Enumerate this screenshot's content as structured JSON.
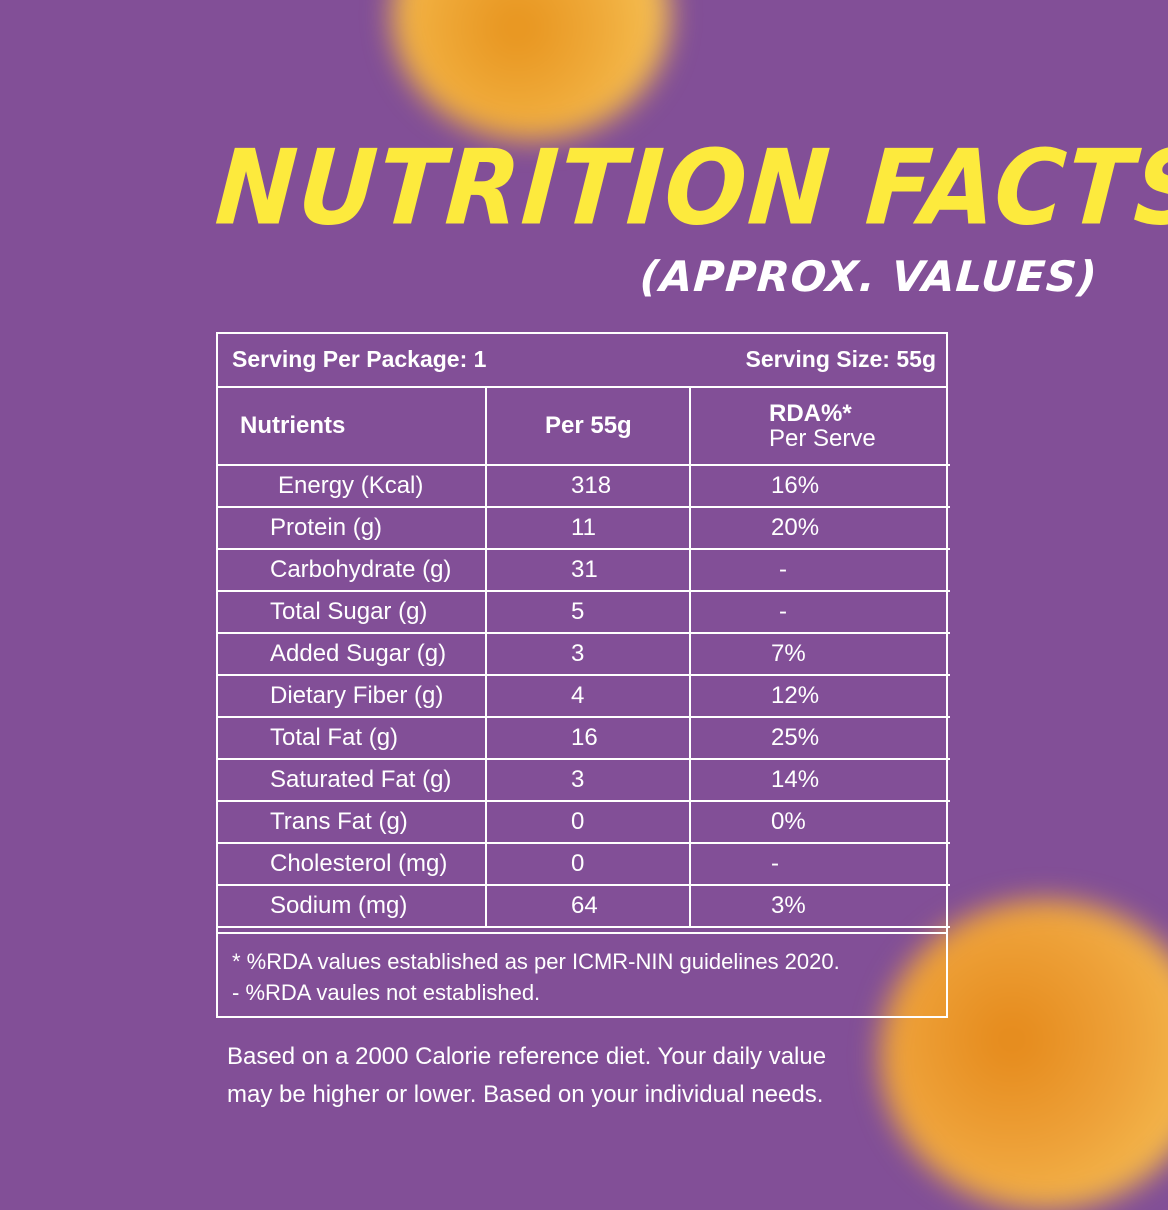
{
  "title": "NUTRITION FACTS",
  "subtitle": "(APPROX. VALUES)",
  "serving": {
    "per_package": "Serving Per Package: 1",
    "size": "Serving Size: 55g"
  },
  "table": {
    "headers": {
      "nutrients": "Nutrients",
      "per": "Per 55g",
      "rda": "RDA%*",
      "rda_sub": "Per Serve"
    },
    "rows": [
      {
        "name": "Energy (Kcal)",
        "value": "318",
        "rda": "16%"
      },
      {
        "name": "Protein (g)",
        "value": "11",
        "rda": "20%"
      },
      {
        "name": "Carbohydrate (g)",
        "value": "31",
        "rda": "-"
      },
      {
        "name": "Total Sugar (g)",
        "value": "5",
        "rda": "-"
      },
      {
        "name": "Added Sugar (g)",
        "value": "3",
        "rda": "7%"
      },
      {
        "name": "Dietary Fiber (g)",
        "value": "4",
        "rda": "12%"
      },
      {
        "name": "Total Fat (g)",
        "value": "16",
        "rda": "25%"
      },
      {
        "name": "Saturated Fat (g)",
        "value": "3",
        "rda": "14%"
      },
      {
        "name": "Trans Fat (g)",
        "value": "0",
        "rda": "0%"
      },
      {
        "name": "Cholesterol (mg)",
        "value": "0",
        "rda": "-"
      },
      {
        "name": "Sodium (mg)",
        "value": "64",
        "rda": "3%"
      }
    ]
  },
  "footnotes": {
    "line1": "* %RDA values established as per ICMR-NIN guidelines 2020.",
    "line2": "- %RDA vaules not established."
  },
  "bottom": {
    "line1": "Based on a 2000 Calorie reference diet. Your daily value",
    "line2": "may be higher or lower. Based on your individual needs."
  },
  "colors": {
    "background": "#824f97",
    "title": "#fdea3d",
    "text": "#ffffff",
    "decor": "#f0ac3c"
  }
}
